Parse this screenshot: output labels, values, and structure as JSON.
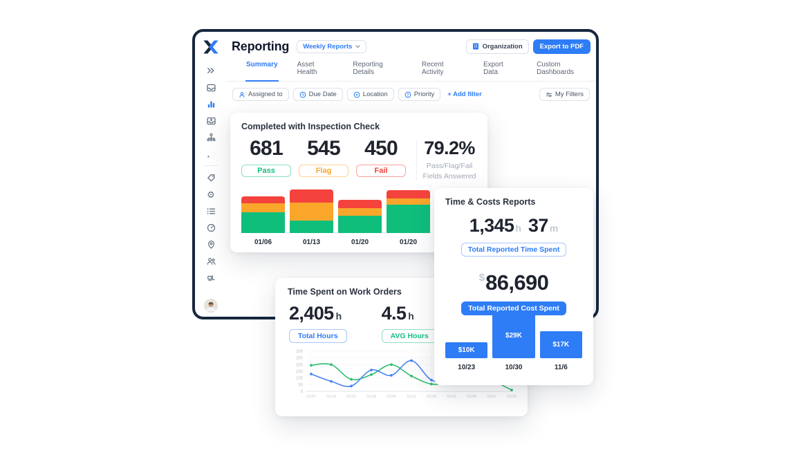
{
  "header": {
    "title": "Reporting",
    "report_period": "Weekly Reports",
    "organization_button": "Organization",
    "export_button": "Export to PDF"
  },
  "tabs": [
    {
      "label": "Summary",
      "active": true
    },
    {
      "label": "Asset Health",
      "active": false
    },
    {
      "label": "Reporting Details",
      "active": false
    },
    {
      "label": "Recent Activity",
      "active": false
    },
    {
      "label": "Export Data",
      "active": false
    },
    {
      "label": "Custom Dashboards",
      "active": false
    }
  ],
  "filter_bar": {
    "pills": [
      {
        "label": "Assigned to",
        "icon": "user-icon"
      },
      {
        "label": "Due Date",
        "icon": "clock-icon"
      },
      {
        "label": "Location",
        "icon": "location-icon"
      },
      {
        "label": "Priority",
        "icon": "priority-icon"
      }
    ],
    "add_filter_label": "+ Add filter",
    "my_filters_label": "My Filters"
  },
  "sidebar": {
    "icons": [
      "expand-icon",
      "inbox-icon",
      "bar-chart-icon",
      "inbox-download-icon",
      "hierarchy-icon",
      "chat-icon",
      "tag-icon",
      "gear-icon",
      "list-icon",
      "gauge-icon",
      "map-pin-icon",
      "team-icon",
      "forklift-icon"
    ],
    "active_icon": "bar-chart-icon",
    "accent_color": "#2E7CF6"
  },
  "cards": {
    "inspection": {
      "title": "Completed with Inspection Check",
      "stats": [
        {
          "value": "681",
          "label": "Pass",
          "color": "#10BE7C"
        },
        {
          "value": "545",
          "label": "Flag",
          "color": "#F9A62B"
        },
        {
          "value": "450",
          "label": "Fail",
          "color": "#F4433C"
        }
      ],
      "percent": {
        "value": "79.2%",
        "line1": "Pass/Flag/Fail",
        "line2": "Fields Answered"
      }
    },
    "time_costs": {
      "title": "Time & Costs Reports",
      "time": {
        "hours": "1,345",
        "hours_unit": "h",
        "minutes": "37",
        "minutes_unit": "m",
        "badge": "Total Reported Time Spent"
      },
      "cost": {
        "currency": "$",
        "value": "86,690",
        "badge": "Total Reported Cost Spent"
      }
    },
    "time_spent": {
      "title": "Time Spent on Work Orders",
      "stats": [
        {
          "value": "2,405",
          "unit": "h",
          "badge": "Total Hours"
        },
        {
          "value": "4.5",
          "unit": "h",
          "badge": "AVG Hours"
        }
      ]
    }
  },
  "chart_data": [
    {
      "type": "bar",
      "variant": "stacked",
      "title": "Completed with Inspection Check",
      "categories": [
        "01/06",
        "01/13",
        "01/20",
        "01/20"
      ],
      "units": "relative (no y-axis shown)",
      "series": [
        {
          "name": "Pass",
          "color": "#10BE7C",
          "values": [
            30,
            18,
            25,
            41
          ]
        },
        {
          "name": "Flag",
          "color": "#F9A62B",
          "values": [
            13,
            26,
            11,
            9
          ]
        },
        {
          "name": "Fail",
          "color": "#F4433C",
          "values": [
            10,
            19,
            12,
            12
          ]
        }
      ],
      "summary": {
        "pass_total": 681,
        "flag_total": 545,
        "fail_total": 450,
        "answered_pct": "79.2%"
      }
    },
    {
      "type": "bar",
      "title": "Time & Costs Reports - weekly cost",
      "categories": [
        "10/23",
        "10/30",
        "11/6"
      ],
      "values": [
        10,
        29,
        17
      ],
      "bar_labels": [
        "$10K",
        "$29K",
        "$17K"
      ],
      "color": "#2E7CF6"
    },
    {
      "type": "line",
      "title": "Time Spent on Work Orders",
      "x": [
        "01/07",
        "01/14",
        "01/21",
        "01/28",
        "02/04",
        "02/11",
        "02/18",
        "02/25",
        "03/04",
        "03/11",
        "03/18"
      ],
      "ylim": [
        0,
        300
      ],
      "yticks": [
        0,
        50,
        100,
        150,
        200,
        250,
        300
      ],
      "grid": "faint vertical dotted",
      "legend": false,
      "series": [
        {
          "name": "hours-green",
          "color": "#2FBE71",
          "values": [
            195,
            200,
            90,
            125,
            200,
            115,
            55,
            70,
            110,
            80,
            10
          ]
        },
        {
          "name": "hours-blue",
          "color": "#4781F4",
          "values": [
            130,
            75,
            40,
            160,
            120,
            230,
            85,
            75,
            90,
            70,
            60
          ]
        }
      ],
      "note": "right portion occluded by overlapping card; occluded values estimated"
    }
  ]
}
